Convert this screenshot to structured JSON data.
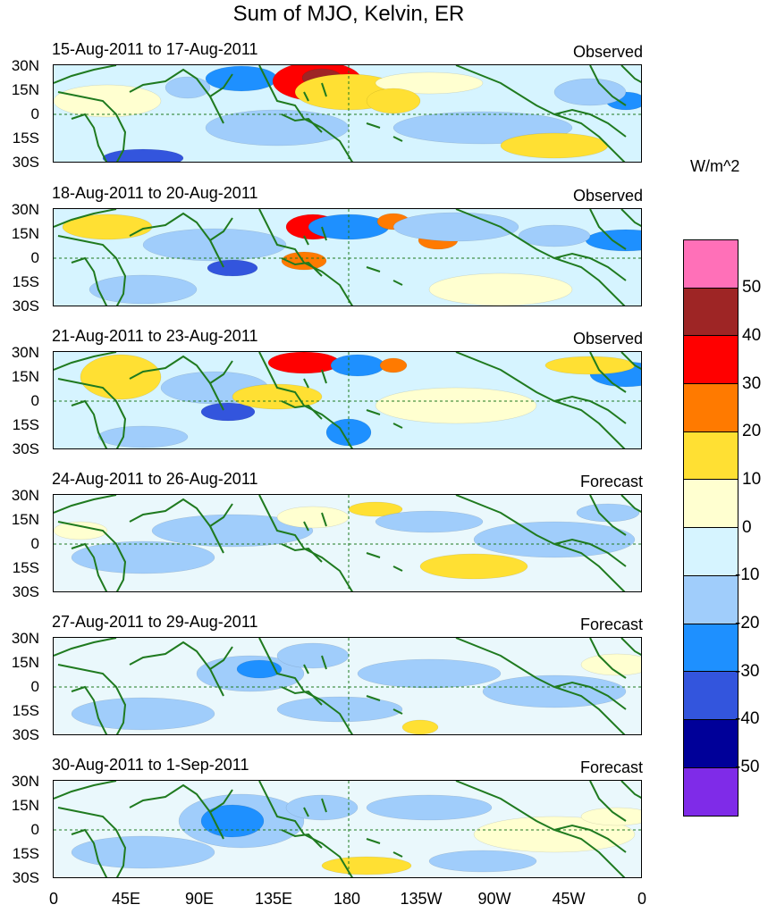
{
  "title": "Sum of MJO, Kelvin, ER",
  "units": "W/m^2",
  "colors": {
    "coast": "#1f7a1f",
    "levels": [
      "#7f2be8",
      "#000099",
      "#3355dd",
      "#1e90ff",
      "#a0cdfb",
      "#d6f4ff",
      "#ffffd0",
      "#ffe033",
      "#ff7a00",
      "#ff0000",
      "#9e2525",
      "#ff70b8"
    ]
  },
  "colorbar": {
    "labels": [
      "50",
      "40",
      "30",
      "20",
      "10",
      "0",
      "-10",
      "-20",
      "-30",
      "-40",
      "-50"
    ]
  },
  "lat_labels": [
    "30N",
    "15N",
    "0",
    "15S",
    "30S"
  ],
  "lon_labels": [
    "0",
    "45E",
    "90E",
    "135E",
    "180",
    "135W",
    "90W",
    "45W",
    "0"
  ],
  "panels": [
    {
      "dates": "15-Aug-2011 to 17-Aug-2011",
      "status": "Observed"
    },
    {
      "dates": "18-Aug-2011 to 20-Aug-2011",
      "status": "Observed"
    },
    {
      "dates": "21-Aug-2011 to 23-Aug-2011",
      "status": "Observed"
    },
    {
      "dates": "24-Aug-2011 to 26-Aug-2011",
      "status": "Forecast"
    },
    {
      "dates": "27-Aug-2011 to 29-Aug-2011",
      "status": "Forecast"
    },
    {
      "dates": "30-Aug-2011 to 1-Sep-2011",
      "status": "Forecast"
    }
  ]
}
